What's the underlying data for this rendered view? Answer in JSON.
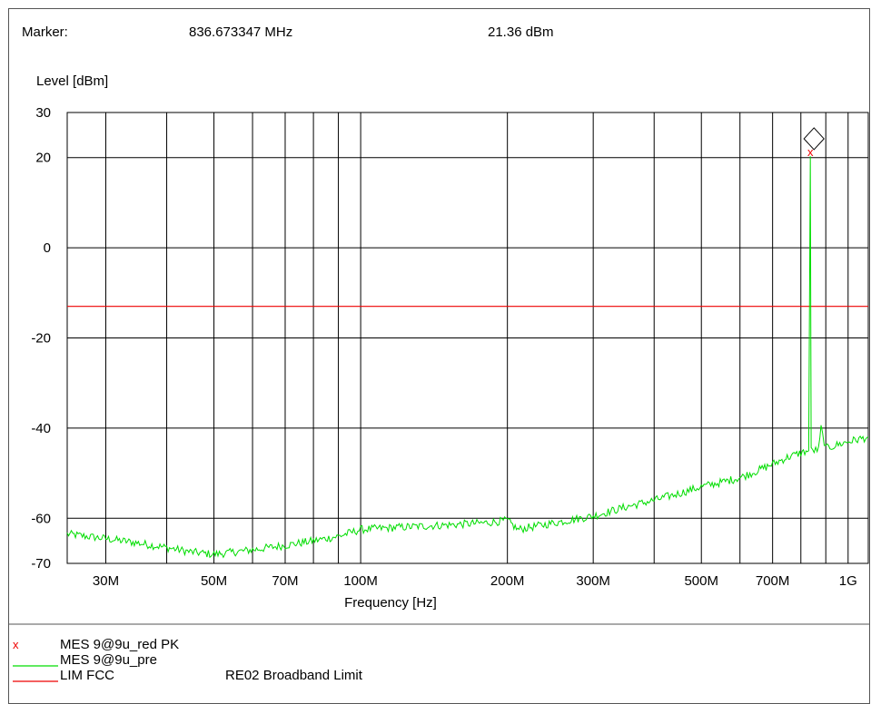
{
  "marker": {
    "label": "Marker:",
    "frequency": "836.673347 MHz",
    "level": "21.36 dBm"
  },
  "chart_data": {
    "type": "line",
    "xlabel": "Frequency [Hz]",
    "ylabel": "Level [dBm]",
    "xscale": "log",
    "xlim": [
      25000000,
      1100000000
    ],
    "ylim": [
      -70,
      30
    ],
    "grid": true,
    "x_ticks": [
      {
        "value": 30000000,
        "label": "30M"
      },
      {
        "value": 50000000,
        "label": "50M"
      },
      {
        "value": 70000000,
        "label": "70M"
      },
      {
        "value": 100000000,
        "label": "100M"
      },
      {
        "value": 200000000,
        "label": "200M"
      },
      {
        "value": 300000000,
        "label": "300M"
      },
      {
        "value": 500000000,
        "label": "500M"
      },
      {
        "value": 700000000,
        "label": "700M"
      },
      {
        "value": 1000000000,
        "label": "1G"
      }
    ],
    "x_minor_gridlines": [
      40000000,
      60000000,
      80000000,
      90000000,
      400000000,
      600000000,
      800000000,
      900000000
    ],
    "y_ticks": [
      {
        "value": 30,
        "label": "30"
      },
      {
        "value": 20,
        "label": "20"
      },
      {
        "value": 0,
        "label": "0"
      },
      {
        "value": -20,
        "label": "-20"
      },
      {
        "value": -40,
        "label": "-40"
      },
      {
        "value": -60,
        "label": "-60"
      },
      {
        "value": -70,
        "label": "-70"
      }
    ],
    "y_gridlines": [
      20,
      0,
      -20,
      -40,
      -60
    ],
    "series": [
      {
        "name": "MES  9@9u_pre",
        "color": "#00dd00",
        "x": [
          25000000,
          30000000,
          35000000,
          40000000,
          45000000,
          50000000,
          55000000,
          60000000,
          70000000,
          80000000,
          90000000,
          100000000,
          120000000,
          150000000,
          180000000,
          200000000,
          210000000,
          250000000,
          300000000,
          350000000,
          400000000,
          450000000,
          500000000,
          550000000,
          600000000,
          650000000,
          700000000,
          750000000,
          800000000,
          830000000,
          836673347,
          840000000,
          870000000,
          880000000,
          900000000,
          1000000000,
          1100000000
        ],
        "y": [
          -63.5,
          -64.5,
          -65.5,
          -66.5,
          -67.5,
          -68,
          -67.5,
          -67,
          -66,
          -65,
          -64,
          -62.5,
          -62,
          -61.5,
          -61,
          -60.5,
          -62.5,
          -61,
          -59.5,
          -57.5,
          -56,
          -54.5,
          -53,
          -52,
          -51,
          -49.5,
          -48,
          -46.5,
          -45.5,
          -45,
          20.3,
          -45,
          -44.8,
          -40,
          -44.5,
          -43,
          -42
        ]
      }
    ],
    "peak_points": [
      {
        "name": "MES  9@9u_red PK",
        "x": 836673347,
        "y": 21.36,
        "symbol": "x",
        "color": "#ee0000"
      }
    ],
    "limit_lines": [
      {
        "name": "LIM  FCC",
        "description": "RE02 Broadband Limit",
        "y": -13,
        "color": "#ee0000"
      }
    ],
    "marker_symbol": "diamond"
  },
  "legend": [
    {
      "symbol": "x",
      "name": "MES  9@9u_red PK",
      "description": ""
    },
    {
      "symbol": "line",
      "name": "MES  9@9u_pre",
      "description": ""
    },
    {
      "symbol": "line",
      "name": "LIM  FCC",
      "description": "RE02 Broadband Limit"
    }
  ]
}
